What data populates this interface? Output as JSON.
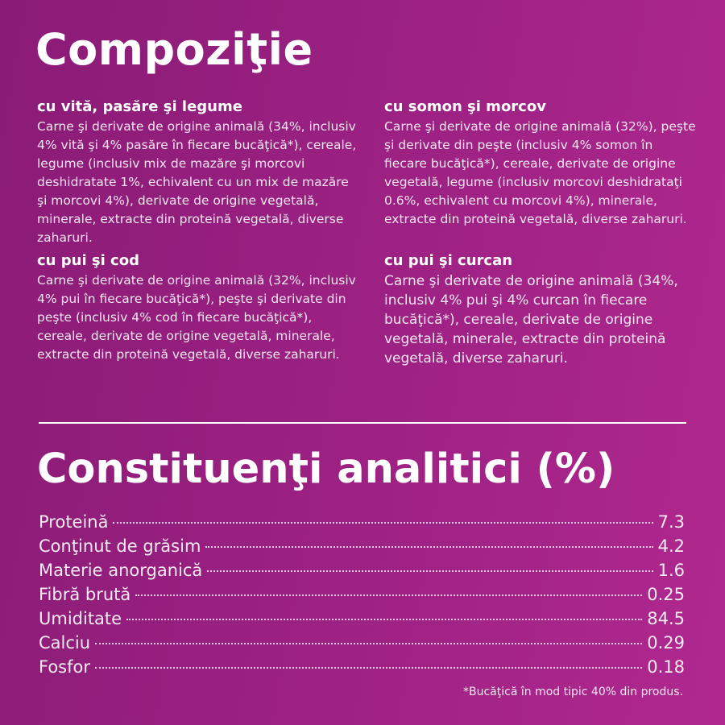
{
  "header": {
    "title": "Compoziţie"
  },
  "recipes": [
    {
      "title": "cu vită, pasăre şi legume",
      "text": "Carne şi derivate de origine animală (34%, inclusiv 4% vită şi 4% pasăre în fiecare bucăţică*), cereale, legume (inclusiv mix de mazăre şi morcovi deshidratate 1%, echivalent cu un mix de mazăre şi morcovi 4%), derivate de origine vegetală, minerale, extracte din proteină vegetală, diverse zaharuri."
    },
    {
      "title": "cu somon şi morcov",
      "text": "Carne şi derivate de origine animală (32%), peşte şi derivate din peşte (inclusiv 4% somon în fiecare bucăţică*), cereale, derivate de origine vegetală, legume (inclusiv morcovi deshidrataţi 0.6%, echivalent cu morcovi 4%), minerale, extracte din proteină vegetală, diverse zaharuri."
    },
    {
      "title": "cu pui şi cod",
      "text": "Carne şi derivate de origine animală (32%, inclusiv 4% pui în fiecare bucăţică*), peşte şi derivate din peşte (inclusiv 4% cod în fiecare bucăţică*), cereale, derivate de origine vegetală, minerale, extracte din proteină vegetală, diverse zaharuri."
    },
    {
      "title": "cu pui şi curcan",
      "text": "Carne şi derivate de origine animală (34%, inclusiv 4% pui şi 4% curcan în fiecare bucăţică*), cereale, derivate de origine vegetală, minerale, extracte din proteină vegetală, diverse zaharuri."
    }
  ],
  "analysis": {
    "title": "Constituenţi analitici (%)",
    "rows": [
      [
        "Proteină",
        "7.3"
      ],
      [
        "Conţinut de grăsim",
        "4.2"
      ],
      [
        "Materie anorganică",
        "1.6"
      ],
      [
        "Fibră brută",
        "0.25"
      ],
      [
        "Umiditate",
        "84.5"
      ],
      [
        "Calciu",
        "0.29"
      ],
      [
        "Fosfor",
        "0.18"
      ]
    ]
  },
  "footnote": "*Bucăţică în mod tipic 40% din produs."
}
